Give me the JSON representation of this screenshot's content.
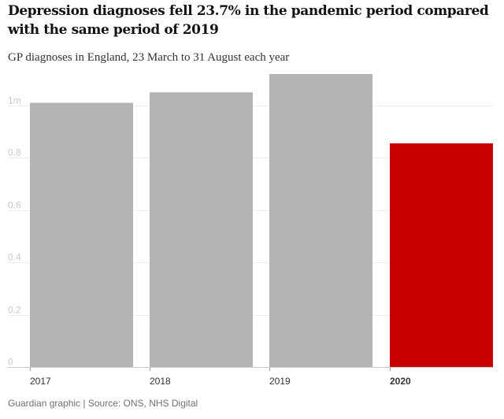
{
  "title": "Depression diagnoses fell 23.7% in the pandemic period compared with the same period of 2019",
  "subtitle": "GP diagnoses in England, 23 March to 31 August each year",
  "footer": "Guardian graphic | Source: ONS, NHS Digital",
  "colors": {
    "default_bar": "#b3b3b4",
    "highlight_bar": "#c70000",
    "grid": "#ededed",
    "tick_label": "#c8c8c8",
    "axis_label": "#333333"
  },
  "chart_data": {
    "type": "bar",
    "categories": [
      "2017",
      "2018",
      "2019",
      "2020"
    ],
    "values": [
      1.01,
      1.05,
      1.12,
      0.855
    ],
    "highlight_category": "2020",
    "yticks": [
      {
        "value": 0,
        "label": "0"
      },
      {
        "value": 0.2,
        "label": "0.2"
      },
      {
        "value": 0.4,
        "label": "0.4"
      },
      {
        "value": 0.6,
        "label": "0.6"
      },
      {
        "value": 0.8,
        "label": "0.8"
      },
      {
        "value": 1.0,
        "label": "1m"
      }
    ],
    "ylim": [
      0,
      1.12
    ],
    "xlabel": "",
    "ylabel": "",
    "grid": true
  }
}
